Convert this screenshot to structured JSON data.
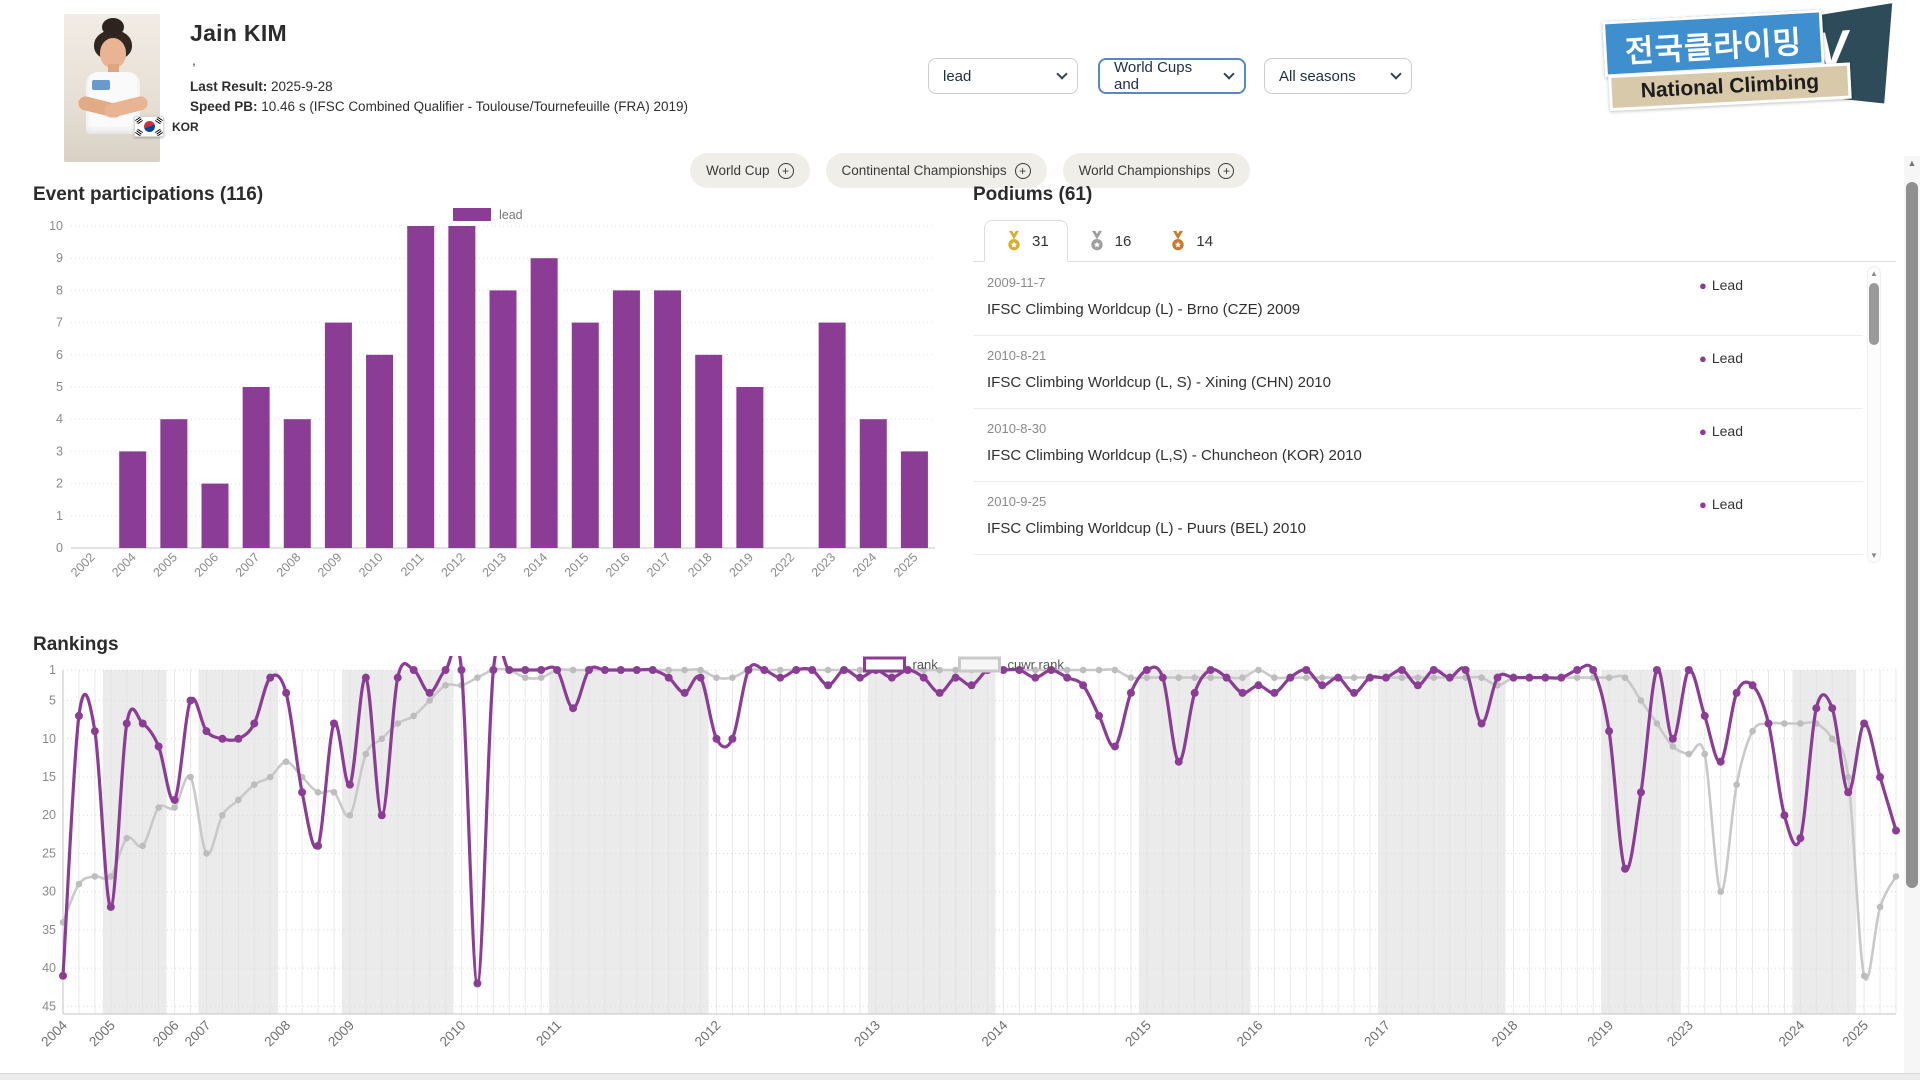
{
  "profile": {
    "name": "Jain KIM",
    "subtitle": ",",
    "last_result_label": "Last Result:",
    "last_result": "2025-9-28",
    "speed_pb_label": "Speed PB:",
    "speed_pb": "10.46 s (IFSC Combined Qualifier - Toulouse/Tournefeuille (FRA) 2019)",
    "country_code": "KOR"
  },
  "filters": {
    "discipline": "lead",
    "event_type": "World Cups and",
    "season": "All seasons"
  },
  "logo": {
    "korean": "전국클라이밍",
    "english": "National Climbing",
    "tv": "TV"
  },
  "event_buttons": [
    {
      "label": "World Cup"
    },
    {
      "label": "Continental Championships"
    },
    {
      "label": "World Championships"
    }
  ],
  "section_titles": {
    "participations": "Event participations (116)",
    "rankings": "Rankings"
  },
  "podiums": {
    "title": "Podiums (61)",
    "tabs": [
      {
        "medal": "gold",
        "count": "31",
        "color": "#d4af37"
      },
      {
        "medal": "silver",
        "count": "16",
        "color": "#9e9e9e"
      },
      {
        "medal": "bronze",
        "count": "14",
        "color": "#c9782e"
      }
    ],
    "items": [
      {
        "date": "2009-11-7",
        "name": "IFSC Climbing Worldcup (L) - Brno (CZE) 2009",
        "tag": "Lead"
      },
      {
        "date": "2010-8-21",
        "name": "IFSC Climbing Worldcup (L, S) - Xining (CHN) 2010",
        "tag": "Lead"
      },
      {
        "date": "2010-8-30",
        "name": "IFSC Climbing Worldcup (L,S) - Chuncheon (KOR) 2010",
        "tag": "Lead"
      },
      {
        "date": "2010-9-25",
        "name": "IFSC Climbing Worldcup (L) - Puurs (BEL) 2010",
        "tag": "Lead"
      }
    ]
  },
  "colors": {
    "accent_purple": "#8b3d96",
    "cuwr_gray": "#c9c9c9",
    "band_gray": "#ebebeb",
    "grid_gray": "#e0e0e0",
    "axis_gray": "#c5c5c5",
    "label_gray": "#8a8a8a"
  },
  "chart_data": [
    {
      "type": "bar",
      "title": "Event participations (116)",
      "legend": "lead",
      "categories": [
        "2002",
        "2004",
        "2005",
        "2006",
        "2007",
        "2008",
        "2009",
        "2010",
        "2011",
        "2012",
        "2013",
        "2014",
        "2015",
        "2016",
        "2017",
        "2018",
        "2019",
        "2022",
        "2023",
        "2024",
        "2025"
      ],
      "values": [
        0,
        3,
        4,
        2,
        5,
        4,
        7,
        6,
        10,
        10,
        8,
        9,
        7,
        8,
        8,
        6,
        5,
        0,
        7,
        4,
        3
      ],
      "ylim": [
        0,
        10
      ],
      "yticks": [
        0,
        1,
        2,
        3,
        4,
        5,
        6,
        7,
        8,
        9,
        10
      ],
      "bar_color": "#8b3d96",
      "grid": true
    },
    {
      "type": "line",
      "title": "Rankings",
      "y_inverted": true,
      "ylim": [
        1,
        46
      ],
      "yticks": [
        1,
        5,
        10,
        15,
        20,
        25,
        30,
        35,
        40,
        45
      ],
      "legend_position": "top-center",
      "seasons": [
        {
          "label": "2004",
          "events": 3
        },
        {
          "label": "2005",
          "events": 4
        },
        {
          "label": "2006",
          "events": 2
        },
        {
          "label": "2007",
          "events": 5
        },
        {
          "label": "2008",
          "events": 4
        },
        {
          "label": "2009",
          "events": 7
        },
        {
          "label": "2010",
          "events": 6
        },
        {
          "label": "2011",
          "events": 10
        },
        {
          "label": "2012",
          "events": 10
        },
        {
          "label": "2013",
          "events": 8
        },
        {
          "label": "2014",
          "events": 9
        },
        {
          "label": "2015",
          "events": 7
        },
        {
          "label": "2016",
          "events": 8
        },
        {
          "label": "2017",
          "events": 8
        },
        {
          "label": "2018",
          "events": 6
        },
        {
          "label": "2019",
          "events": 5
        },
        {
          "label": "2023",
          "events": 7
        },
        {
          "label": "2024",
          "events": 4
        },
        {
          "label": "2025",
          "events": 3
        }
      ],
      "series": [
        {
          "name": "rank",
          "color": "#8b3d96",
          "values": [
            41,
            7,
            9,
            32,
            8,
            8,
            11,
            18,
            5,
            9,
            10,
            10,
            8,
            2,
            4,
            17,
            24,
            8,
            16,
            2,
            20,
            2,
            1,
            4,
            1,
            1,
            42,
            1,
            1,
            1,
            1,
            1,
            6,
            1,
            1,
            1,
            1,
            1,
            2,
            4,
            2,
            10,
            10,
            1,
            1,
            2,
            1,
            1,
            3,
            1,
            2,
            1,
            2,
            1,
            2,
            4,
            2,
            3,
            1,
            1,
            1,
            2,
            1,
            2,
            3,
            7,
            11,
            4,
            1,
            2,
            13,
            4,
            1,
            2,
            4,
            3,
            4,
            2,
            1,
            3,
            2,
            4,
            2,
            2,
            1,
            3,
            1,
            2,
            1,
            8,
            2,
            2,
            2,
            2,
            2,
            1,
            1,
            9,
            27,
            17,
            1,
            10,
            1,
            7,
            13,
            4,
            3,
            8,
            20,
            23,
            6,
            6,
            17,
            8,
            15,
            22
          ]
        },
        {
          "name": "cuwr rank",
          "color": "#c9c9c9",
          "values": [
            34,
            29,
            28,
            28,
            23,
            24,
            19,
            19,
            15,
            25,
            20,
            18,
            16,
            15,
            13,
            15,
            17,
            17,
            20,
            12,
            10,
            8,
            7,
            5,
            3,
            3,
            2,
            1,
            1,
            2,
            2,
            1,
            1,
            1,
            1,
            1,
            1,
            1,
            1,
            1,
            1,
            2,
            2,
            1,
            1,
            1,
            1,
            1,
            1,
            1,
            1,
            1,
            1,
            1,
            1,
            1,
            1,
            1,
            1,
            1,
            1,
            1,
            1,
            1,
            1,
            1,
            1,
            2,
            2,
            2,
            2,
            2,
            2,
            2,
            2,
            1,
            2,
            2,
            2,
            2,
            2,
            2,
            2,
            2,
            2,
            2,
            2,
            2,
            2,
            2,
            3,
            2,
            2,
            2,
            2,
            2,
            2,
            2,
            2,
            5,
            8,
            11,
            12,
            12,
            30,
            16,
            9,
            8,
            8,
            8,
            8,
            10,
            15,
            41,
            32,
            28
          ]
        }
      ]
    }
  ]
}
